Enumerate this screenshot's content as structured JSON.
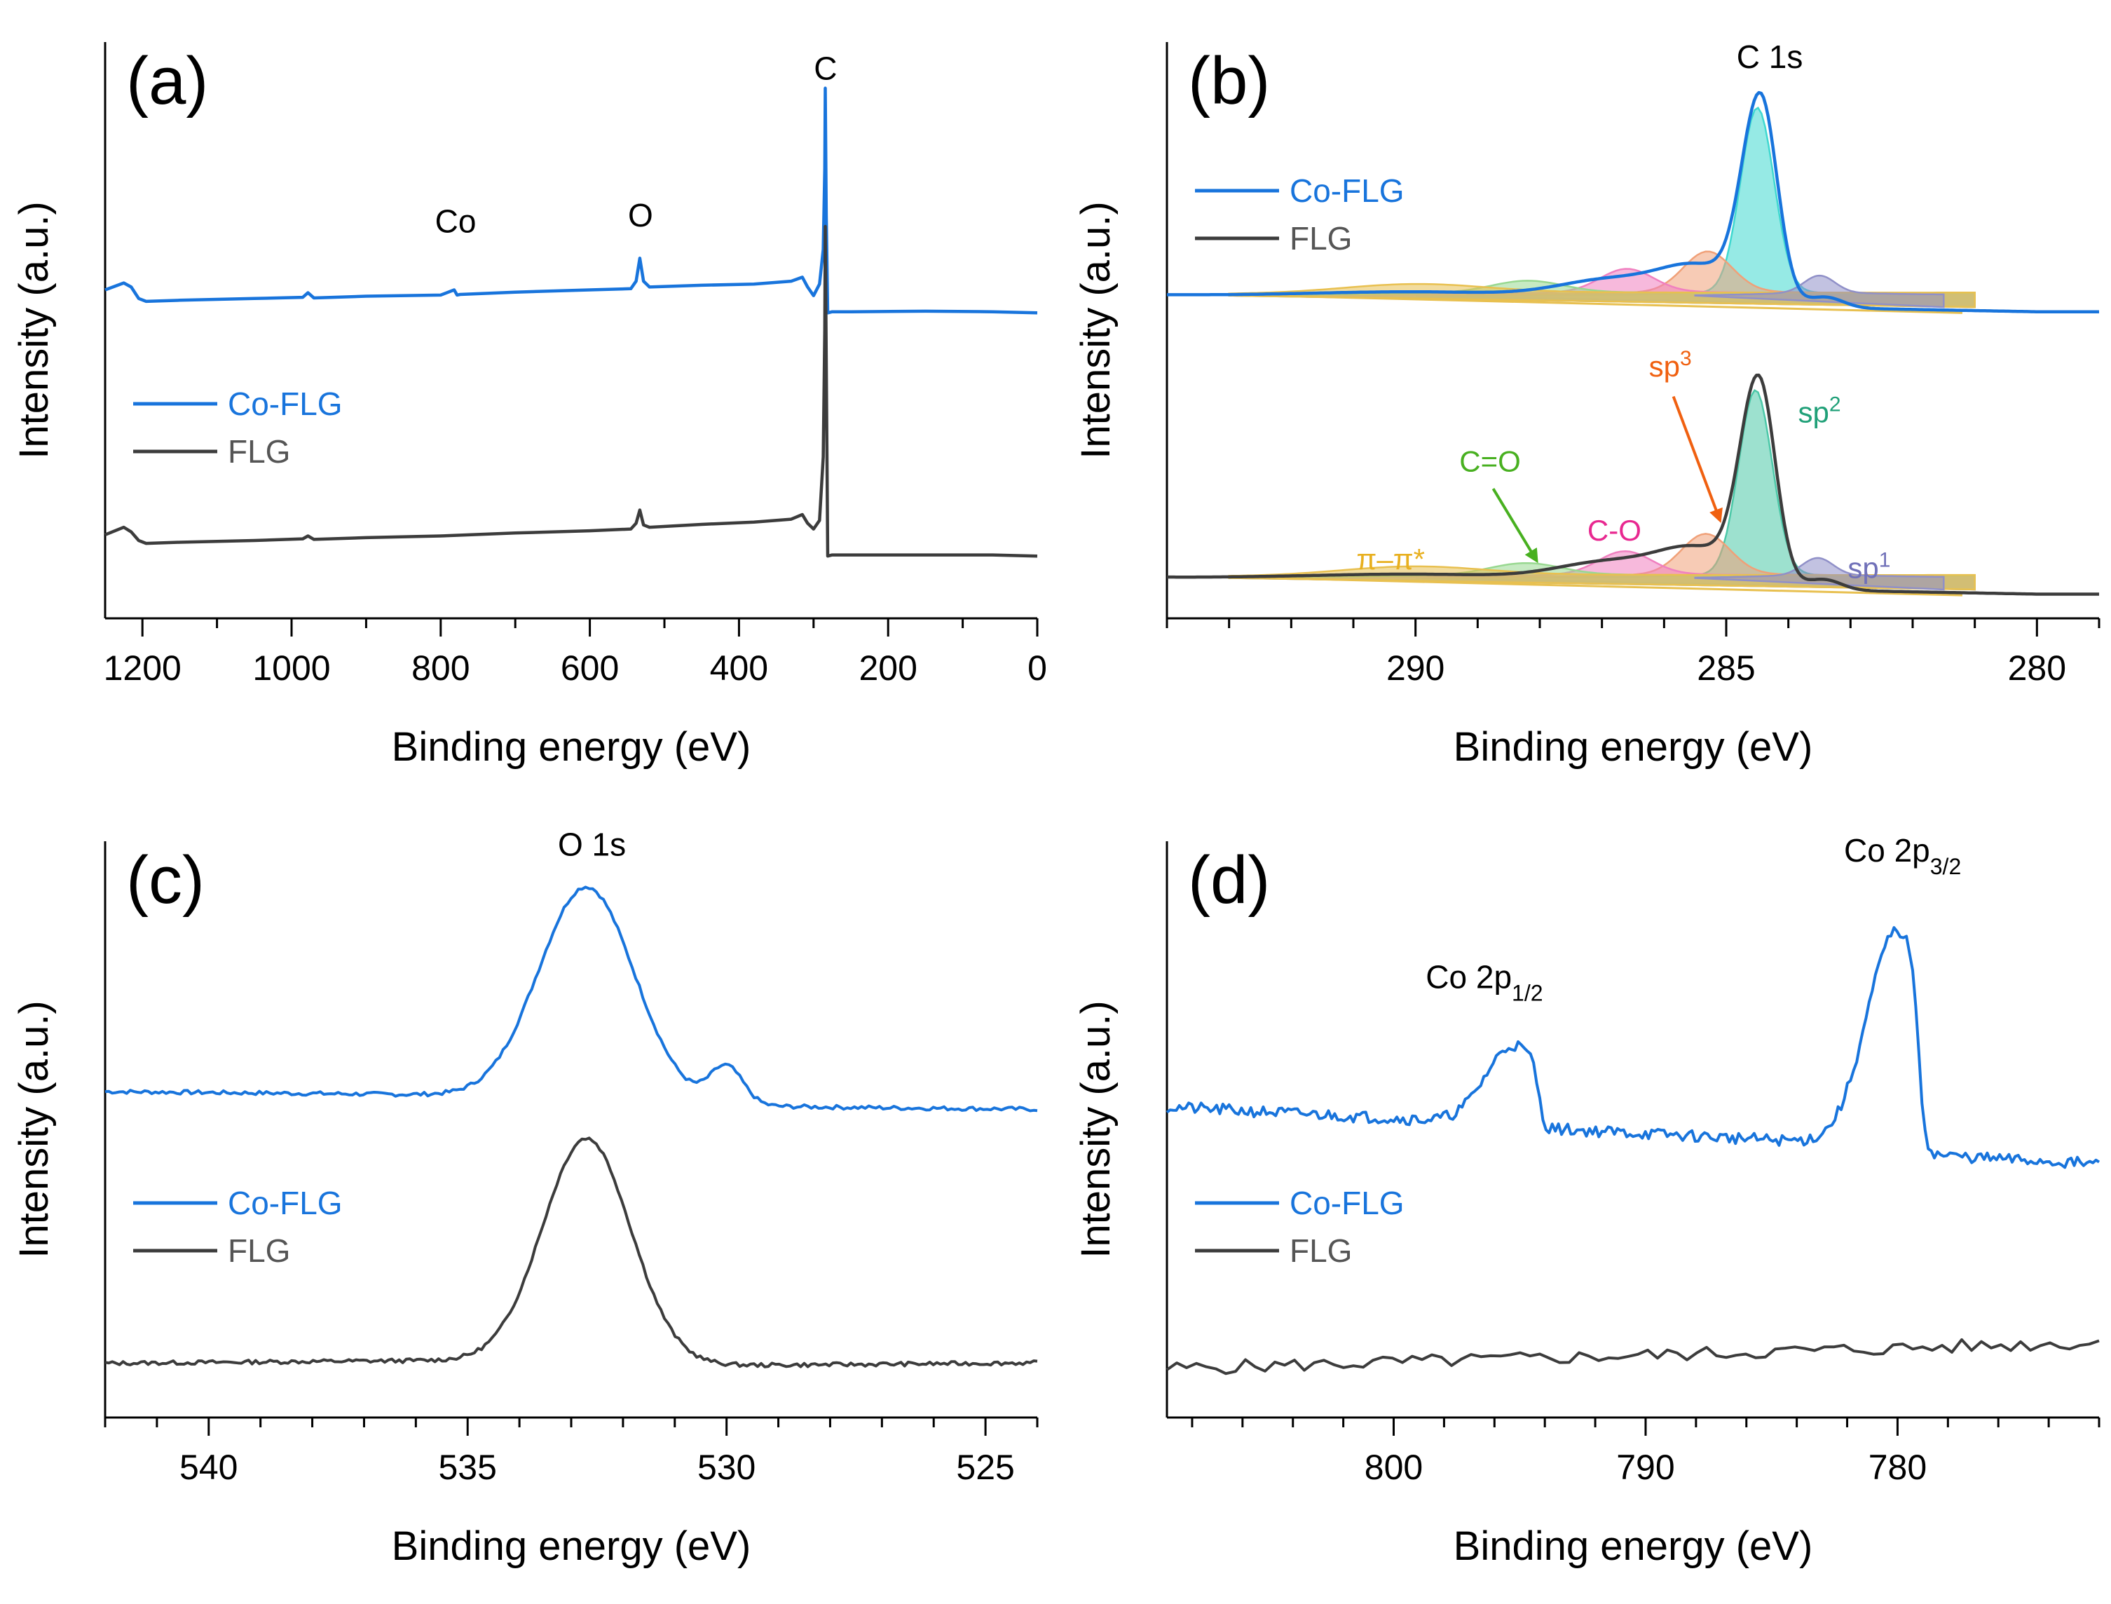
{
  "colors": {
    "co_flg": "#1874dc",
    "flg": "#3c3c3c",
    "sp2": "#3fd8d0",
    "sp2_flg": "#4cc8a8",
    "sp3": "#f0a078",
    "c_o": "#f080c0",
    "c_eq_o": "#98d890",
    "pi": "#e8c050",
    "sp1": "#9090c8",
    "label_sp3": "#f06010",
    "label_sp2": "#20a078",
    "label_c_o": "#e82890",
    "label_c_eq_o": "#48b020",
    "label_pi": "#e8b020",
    "label_sp1": "#7070b8"
  },
  "chart_data": [
    {
      "id": "a",
      "type": "line",
      "panel_label": "(a)",
      "xlabel": "Binding energy (eV)",
      "ylabel": "Intensity (a.u.)",
      "xlim": [
        1250,
        0
      ],
      "ylim": [
        0,
        1
      ],
      "xticks": [
        1200,
        1000,
        800,
        600,
        400,
        200,
        0
      ],
      "xtick_labels": [
        "1200",
        "1000",
        "800",
        "600",
        "400",
        "200",
        "0"
      ],
      "minor_step": 100,
      "legend": [
        "Co-FLG",
        "FLG"
      ],
      "legend_position": "middle-left",
      "annotations": [
        {
          "text": "Co",
          "x": 780,
          "y": 0.67
        },
        {
          "text": "O",
          "x": 532,
          "y": 0.68
        },
        {
          "text": "C",
          "x": 284,
          "y": 0.935
        }
      ],
      "series": [
        {
          "name": "Co-FLG",
          "color_key": "co_flg",
          "x": [
            1250,
            1225,
            1215,
            1205,
            1195,
            1150,
            1050,
            985,
            978,
            970,
            900,
            800,
            782,
            778,
            774,
            700,
            600,
            545,
            538,
            533,
            528,
            520,
            450,
            380,
            330,
            315,
            308,
            300,
            292,
            287,
            285,
            284.3,
            283,
            281,
            275,
            250,
            150,
            60,
            0
          ],
          "y": [
            0.57,
            0.582,
            0.575,
            0.555,
            0.55,
            0.552,
            0.555,
            0.557,
            0.565,
            0.556,
            0.559,
            0.561,
            0.57,
            0.561,
            0.562,
            0.566,
            0.57,
            0.572,
            0.585,
            0.625,
            0.585,
            0.575,
            0.578,
            0.58,
            0.585,
            0.592,
            0.575,
            0.56,
            0.58,
            0.64,
            0.78,
            0.92,
            0.7,
            0.53,
            0.532,
            0.532,
            0.533,
            0.532,
            0.53
          ]
        },
        {
          "name": "FLG",
          "color_key": "flg",
          "x": [
            1250,
            1225,
            1215,
            1205,
            1195,
            1150,
            1050,
            985,
            978,
            970,
            900,
            800,
            700,
            600,
            545,
            538,
            533,
            528,
            520,
            450,
            380,
            330,
            315,
            308,
            300,
            292,
            287,
            285,
            284.3,
            283,
            281,
            275,
            250,
            150,
            60,
            0
          ],
          "y": [
            0.145,
            0.158,
            0.15,
            0.135,
            0.13,
            0.132,
            0.135,
            0.138,
            0.143,
            0.137,
            0.14,
            0.143,
            0.148,
            0.152,
            0.155,
            0.165,
            0.188,
            0.162,
            0.158,
            0.163,
            0.167,
            0.172,
            0.18,
            0.165,
            0.155,
            0.17,
            0.28,
            0.5,
            0.68,
            0.45,
            0.108,
            0.11,
            0.11,
            0.11,
            0.11,
            0.108
          ]
        }
      ]
    },
    {
      "id": "b",
      "type": "line",
      "panel_label": "(b)",
      "xlabel": "Binding energy (eV)",
      "ylabel": "Intensity (a.u.)",
      "xlim": [
        294,
        279
      ],
      "ylim": [
        0,
        1
      ],
      "xticks": [
        290,
        285,
        280
      ],
      "xtick_labels": [
        "290",
        "285",
        "280"
      ],
      "minor_step": 1,
      "legend": [
        "Co-FLG",
        "FLG"
      ],
      "legend_position": "top-left",
      "title_annotation": {
        "text": "C 1s",
        "x": 284.3,
        "y": 0.955
      },
      "offsets": {
        "co_flg": 0.56,
        "flg": 0.07
      },
      "envelope": {
        "center": 284.45,
        "amp": 0.35,
        "wl": 0.42,
        "wr": 0.38,
        "tail_amp": 0.015,
        "tail_w": 3.0,
        "bg": 0.0
      },
      "components": [
        {
          "label": "sp²",
          "fill_key": "sp2",
          "center": 284.5,
          "amp": 0.32,
          "width": 0.38,
          "range": [
            290,
            281
          ]
        },
        {
          "label": "sp³",
          "fill_key": "sp3",
          "center": 285.3,
          "amp": 0.07,
          "width": 0.55,
          "range": [
            292,
            281
          ]
        },
        {
          "label": "C-O",
          "fill_key": "c_o",
          "center": 286.6,
          "amp": 0.04,
          "width": 0.6,
          "range": [
            293,
            281
          ]
        },
        {
          "label": "C=O",
          "fill_key": "c_eq_o",
          "center": 288.2,
          "amp": 0.02,
          "width": 0.8,
          "range": [
            293,
            281
          ]
        },
        {
          "label": "π–π*",
          "fill_key": "pi",
          "center": 290.0,
          "amp": 0.015,
          "width": 1.6,
          "range": [
            293,
            281
          ]
        },
        {
          "label": "sp¹",
          "fill_key": "sp1",
          "center": 283.5,
          "amp": 0.03,
          "width": 0.35,
          "range": [
            285.5,
            281.5
          ]
        }
      ],
      "component_labels": [
        {
          "text": "sp",
          "sup": "3",
          "color_key": "label_sp3",
          "x": 285.9,
          "y": 0.42
        },
        {
          "text": "sp",
          "sup": "2",
          "color_key": "label_sp2",
          "x": 283.5,
          "y": 0.34
        },
        {
          "text": "C=O",
          "color_key": "label_c_eq_o",
          "x": 288.8,
          "y": 0.255
        },
        {
          "text": "C-O",
          "color_key": "label_c_o",
          "x": 286.8,
          "y": 0.135
        },
        {
          "text": "π–π*",
          "color_key": "label_pi",
          "x": 290.4,
          "y": 0.085
        },
        {
          "text": "sp",
          "sup": "1",
          "color_key": "label_sp1",
          "x": 282.7,
          "y": 0.07
        }
      ]
    },
    {
      "id": "c",
      "type": "line",
      "panel_label": "(c)",
      "xlabel": "Binding energy (eV)",
      "ylabel": "Intensity (a.u.)",
      "xlim": [
        542,
        524
      ],
      "ylim": [
        0,
        1
      ],
      "xticks": [
        540,
        535,
        530,
        525
      ],
      "xtick_labels": [
        "540",
        "535",
        "530",
        "525"
      ],
      "minor_step": 1,
      "legend": [
        "Co-FLG",
        "FLG"
      ],
      "legend_position": "middle-left",
      "title_annotation": {
        "text": "O 1s",
        "x": 532.6,
        "y": 0.975
      },
      "series": [
        {
          "name": "Co-FLG",
          "color_key": "co_flg",
          "baseline": [
            0.55,
            0.535
          ],
          "peaks": [
            {
              "c": 532.7,
              "a": 0.37,
              "w": 1.3
            },
            {
              "c": 530.0,
              "a": 0.065,
              "w": 0.45
            }
          ],
          "noise": 0.0035,
          "seed": 7,
          "n": 260
        },
        {
          "name": "FLG",
          "color_key": "flg",
          "baseline": [
            0.08,
            0.095
          ],
          "peaks": [
            {
              "c": 532.7,
              "a": 0.39,
              "w": 1.2
            }
          ],
          "noise": 0.0035,
          "seed": 13,
          "n": 260
        }
      ]
    },
    {
      "id": "d",
      "type": "line",
      "panel_label": "(d)",
      "xlabel": "Binding energy (eV)",
      "ylabel": "Intensity (a.u.)",
      "xlim": [
        809,
        772
      ],
      "ylim": [
        0,
        1
      ],
      "xticks": [
        800,
        790,
        780
      ],
      "xtick_labels": [
        "800",
        "790",
        "780"
      ],
      "minor_step": 2,
      "legend": [
        "Co-FLG",
        "FLG"
      ],
      "legend_position": "middle-left",
      "annotations": [
        {
          "text": "Co 2p",
          "sub": "1/2",
          "x": 796.4,
          "y": 0.745
        },
        {
          "text": "Co 2p",
          "sub": "3/2",
          "x": 779.8,
          "y": 0.965
        }
      ],
      "series": [
        {
          "name": "Co-FLG",
          "color_key": "co_flg",
          "baseline": [
            0.52,
            0.44
          ],
          "peaks": [
            {
              "c": 795.2,
              "a": 0.14,
              "w": 1.6,
              "cut": 794.5,
              "cutw": 0.35
            },
            {
              "c": 780.0,
              "a": 0.38,
              "w": 1.7,
              "cut": 779.5,
              "cutw": 0.45
            }
          ],
          "noise": 0.01,
          "seed": 21,
          "n": 300
        },
        {
          "name": "FLG",
          "color_key": "flg",
          "baseline": [
            0.085,
            0.13
          ],
          "peaks": [],
          "noise": 0.012,
          "seed": 5,
          "n": 95
        }
      ]
    }
  ]
}
